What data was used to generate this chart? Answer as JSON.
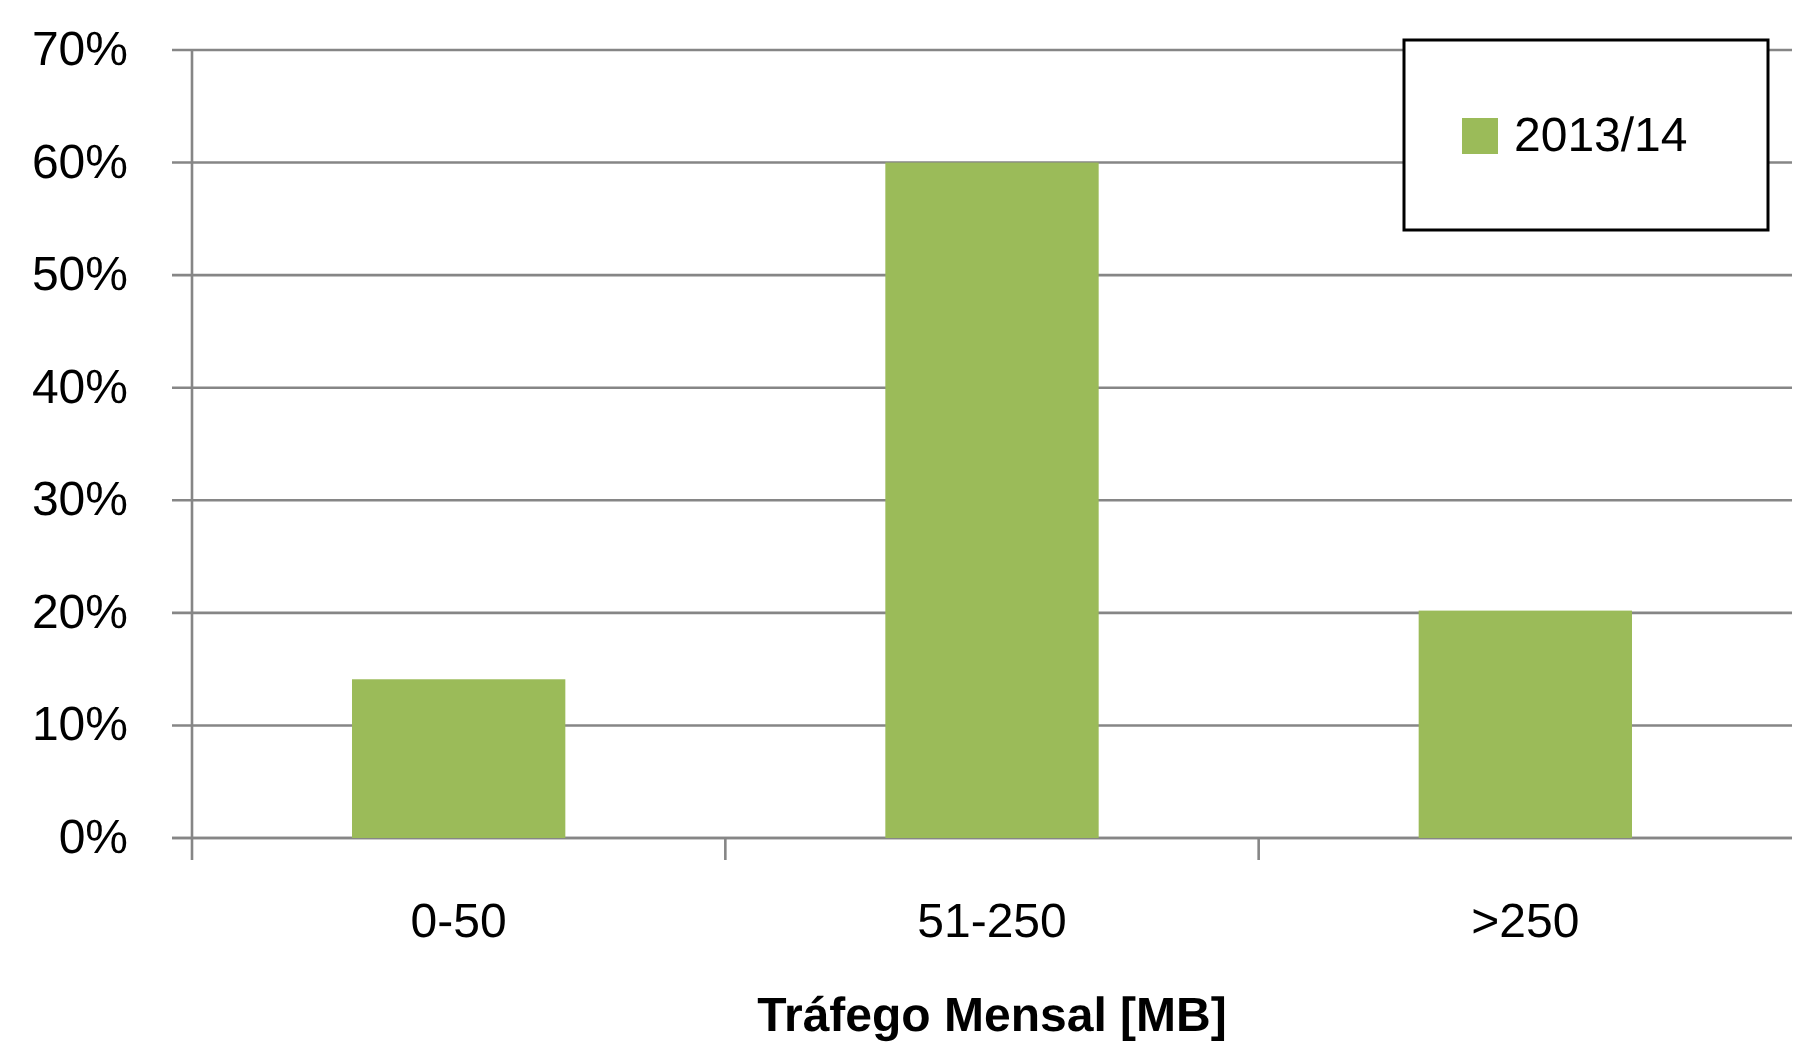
{
  "chart_data": {
    "type": "bar",
    "xlabel": "Tráfego Mensal [MB]",
    "categories": [
      "0-50",
      "51-250",
      ">250"
    ],
    "series": [
      {
        "name": "2013/14",
        "color": "#9bbb59",
        "values": [
          14.1,
          60,
          20.2
        ]
      }
    ],
    "ylim": [
      0,
      70
    ],
    "yticks": [
      {
        "value": 0,
        "label": "0%"
      },
      {
        "value": 10,
        "label": "10%"
      },
      {
        "value": 20,
        "label": "20%"
      },
      {
        "value": 30,
        "label": "30%"
      },
      {
        "value": 40,
        "label": "40%"
      },
      {
        "value": 50,
        "label": "50%"
      },
      {
        "value": 60,
        "label": "60%"
      },
      {
        "value": 70,
        "label": "70%"
      }
    ],
    "grid": "y",
    "legend": "top right"
  }
}
